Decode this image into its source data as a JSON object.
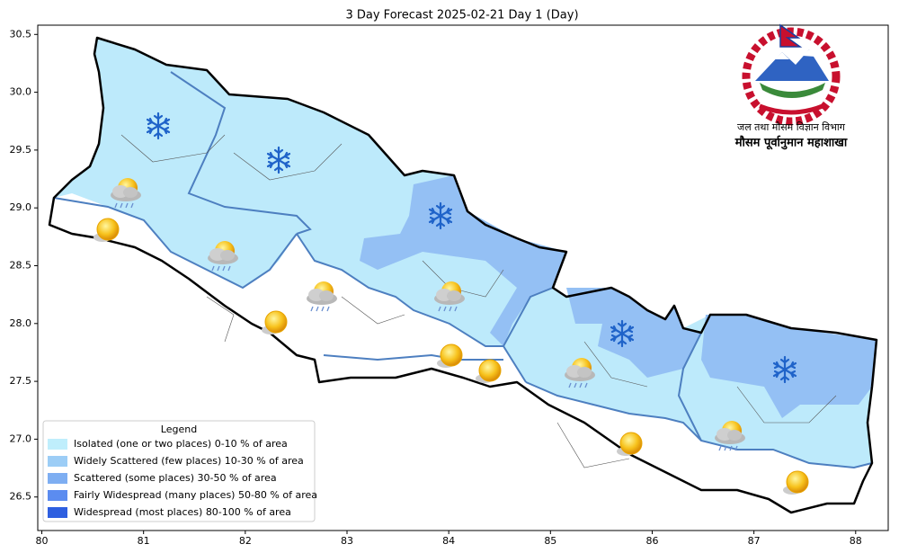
{
  "chart_data": {
    "type": "map",
    "title": "3 Day Forecast 2025-02-21 Day 1 (Day)",
    "xlim": [
      79.96,
      88.32
    ],
    "ylim": [
      26.21,
      30.58
    ],
    "xticks": [
      80,
      81,
      82,
      83,
      84,
      85,
      86,
      87,
      88
    ],
    "yticks": [
      26.5,
      {
        "value": 27,
        "label": "27.0"
      },
      27.5,
      {
        "value": 28,
        "label": "28.0"
      },
      28.5,
      {
        "value": 29,
        "label": "29.0"
      },
      29.5,
      {
        "value": 30,
        "label": "30.0"
      },
      30.5
    ],
    "legend": {
      "title": "Legend",
      "items": [
        {
          "label": "Isolated (one or two places)  0-10 % of area",
          "color": "#bfeefc"
        },
        {
          "label": "Widely Scattered (few places) 10-30 % of area",
          "color": "#9ccdf6"
        },
        {
          "label": "Scattered (some places) 30-50  % of area",
          "color": "#7eaef2"
        },
        {
          "label": "Fairly Widespread (many places) 50-80 % of area",
          "color": "#5b8cf0"
        },
        {
          "label": "Widespread (most places) 80-100 % of area",
          "color": "#2e5fe0"
        }
      ]
    },
    "agency": {
      "department": "जल तथा मौसम विज्ञान विभाग",
      "division": "मौसम पूर्वानुमान महाशाखा"
    }
  }
}
